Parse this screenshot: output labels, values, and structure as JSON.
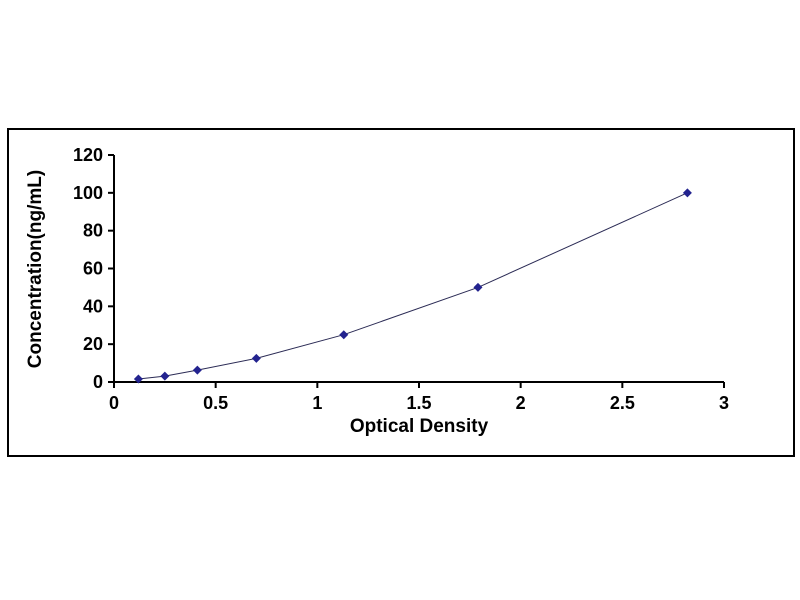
{
  "chart_data": {
    "type": "line",
    "title": "",
    "xlabel": "Optical Density",
    "ylabel": "Concentration(ng/mL)",
    "x": [
      0.12,
      0.25,
      0.41,
      0.7,
      1.13,
      1.79,
      2.82
    ],
    "y": [
      1.56,
      3.12,
      6.25,
      12.5,
      25,
      50,
      100
    ],
    "xlim": [
      0,
      3
    ],
    "ylim": [
      0,
      120
    ],
    "xticks": [
      0,
      0.5,
      1,
      1.5,
      2,
      2.5,
      3
    ],
    "yticks": [
      0,
      20,
      40,
      60,
      80,
      100,
      120
    ],
    "grid": false,
    "legend_position": "none",
    "marker": "diamond",
    "line_color": "#2b2b55",
    "marker_color": "#23238f",
    "axis_color": "#000000"
  }
}
